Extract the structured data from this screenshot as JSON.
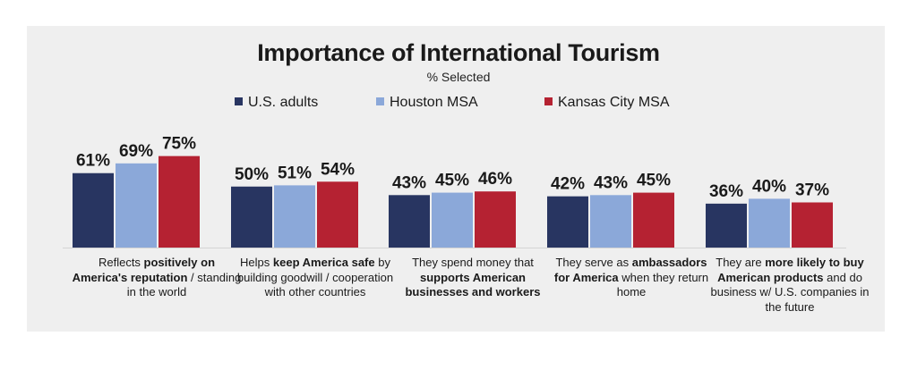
{
  "chart_data": {
    "type": "bar",
    "title": "Importance of International Tourism",
    "subtitle": "% Selected",
    "legend_position": "top",
    "grid": false,
    "categories": [
      {
        "parts": [
          {
            "t": "Reflects ",
            "b": false
          },
          {
            "t": "positively on America's reputation",
            "b": true
          },
          {
            "t": " / standing in the world",
            "b": false
          }
        ]
      },
      {
        "parts": [
          {
            "t": "Helps ",
            "b": false
          },
          {
            "t": "keep America safe",
            "b": true
          },
          {
            "t": " by building goodwill / cooperation with other countries",
            "b": false
          }
        ]
      },
      {
        "parts": [
          {
            "t": "They spend money that ",
            "b": false
          },
          {
            "t": "supports American businesses and workers",
            "b": true
          }
        ]
      },
      {
        "parts": [
          {
            "t": "They serve as ",
            "b": false
          },
          {
            "t": "ambassadors for America",
            "b": true
          },
          {
            "t": " when they return home",
            "b": false
          }
        ]
      },
      {
        "parts": [
          {
            "t": "They are ",
            "b": false
          },
          {
            "t": "more likely to buy American products",
            "b": true
          },
          {
            "t": " and do business w/ U.S. companies in the future",
            "b": false
          }
        ]
      }
    ],
    "series": [
      {
        "name": "U.S. adults",
        "color": "#283561",
        "values": [
          61,
          50,
          43,
          42,
          36
        ]
      },
      {
        "name": "Houston MSA",
        "color": "#8ba8d9",
        "values": [
          69,
          51,
          45,
          43,
          40
        ]
      },
      {
        "name": "Kansas City MSA",
        "color": "#b52232",
        "values": [
          75,
          54,
          46,
          45,
          37
        ]
      }
    ],
    "data_labels": [
      [
        "61%",
        "50%",
        "43%",
        "42%",
        "36%"
      ],
      [
        "69%",
        "51%",
        "45%",
        "43%",
        "40%"
      ],
      [
        "75%",
        "54%",
        "46%",
        "45%",
        "37%"
      ]
    ]
  }
}
